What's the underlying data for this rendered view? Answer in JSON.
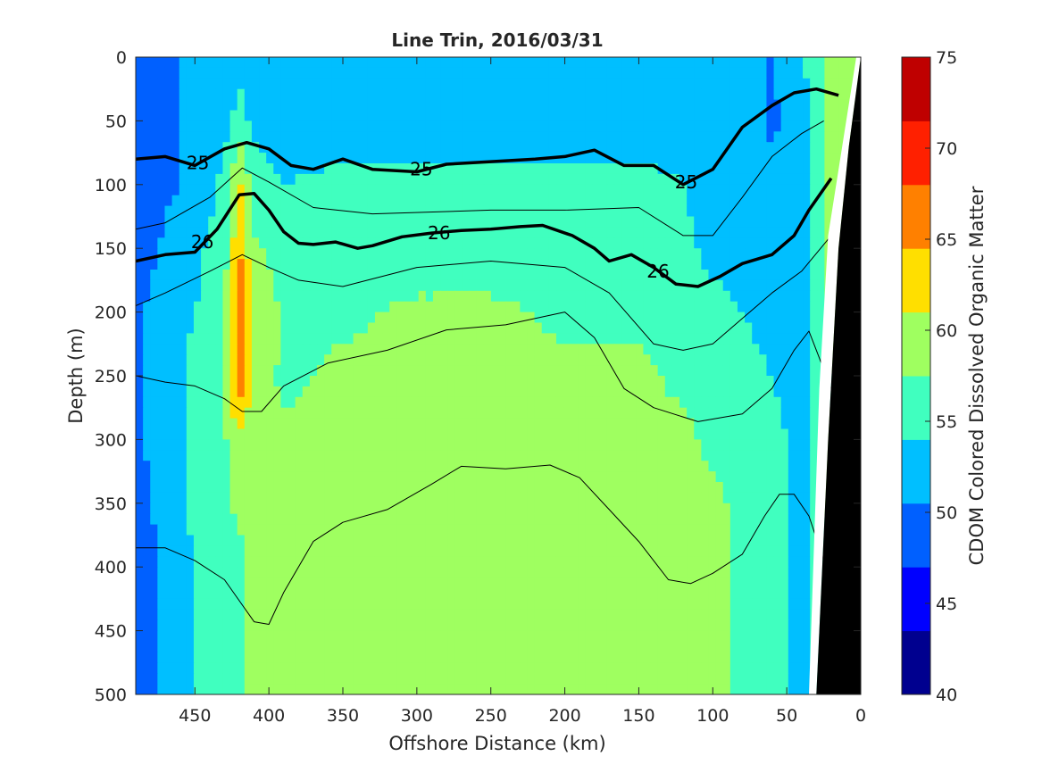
{
  "chart_data": {
    "type": "heatmap",
    "title": "Line Trin, 2016/03/31",
    "xlabel": "Offshore Distance (km)",
    "ylabel": "Depth (m)",
    "colorbar_label": "CDOM Colored Dissolved Organic Matter",
    "x_reversed": true,
    "y_reversed": true,
    "xlim": [
      490,
      0
    ],
    "ylim": [
      500,
      0
    ],
    "xticks": [
      450,
      400,
      350,
      300,
      250,
      200,
      150,
      100,
      50,
      0
    ],
    "yticks": [
      0,
      50,
      100,
      150,
      200,
      250,
      300,
      350,
      400,
      450,
      500
    ],
    "clim": [
      40,
      75
    ],
    "colorbar_ticks": [
      40,
      45,
      50,
      55,
      60,
      65,
      70,
      75
    ],
    "colormap": [
      "#00008f",
      "#0000ff",
      "#0060ff",
      "#00bfff",
      "#40ffbf",
      "#9fff60",
      "#ffdf00",
      "#ff8000",
      "#ff2000",
      "#bf0000"
    ],
    "bathymetry_color": "#000000",
    "color_field": {
      "x_km": [
        490,
        470,
        450,
        430,
        420,
        410,
        390,
        350,
        300,
        250,
        200,
        150,
        120,
        100,
        80,
        60,
        40,
        25,
        15
      ],
      "depth_m": [
        0,
        50,
        100,
        150,
        200,
        250,
        300,
        350,
        400,
        450,
        500
      ],
      "values": [
        [
          50,
          50,
          51,
          52,
          53,
          52,
          52,
          52,
          52,
          52,
          52,
          52,
          53,
          54,
          52,
          50,
          54,
          57,
          60
        ],
        [
          48,
          50,
          51,
          53,
          55,
          53,
          52,
          52,
          52,
          52,
          52,
          52,
          53,
          53,
          52,
          50,
          52,
          57,
          60
        ],
        [
          48,
          50,
          51,
          55,
          62,
          56,
          54,
          55,
          55,
          55,
          55,
          55,
          54,
          52,
          52,
          51,
          51,
          57,
          60
        ],
        [
          49,
          51,
          53,
          56,
          65,
          58,
          56,
          56,
          56,
          56,
          56,
          56,
          55,
          53,
          53,
          52,
          51,
          57,
          60
        ],
        [
          50,
          52,
          54,
          57,
          66,
          60,
          57,
          57,
          58,
          58,
          57,
          57,
          56,
          55,
          54,
          53,
          52,
          57,
          60
        ],
        [
          50,
          52,
          55,
          58,
          68,
          59,
          57,
          58,
          58,
          58,
          58,
          58,
          57,
          56,
          55,
          54,
          52,
          56,
          60
        ],
        [
          50,
          52,
          55,
          57,
          60,
          58,
          58,
          58,
          59,
          59,
          58,
          58,
          58,
          57,
          56,
          55,
          53,
          57,
          60
        ],
        [
          49,
          52,
          55,
          57,
          58,
          58,
          58,
          59,
          59,
          59,
          59,
          58,
          58,
          58,
          57,
          56,
          53,
          57,
          60
        ],
        [
          48,
          51,
          54,
          56,
          57,
          58,
          59,
          59,
          59,
          60,
          59,
          58,
          58,
          58,
          57,
          56,
          53,
          57,
          60
        ],
        [
          48,
          51,
          54,
          56,
          57,
          58,
          59,
          60,
          60,
          60,
          59,
          59,
          58,
          58,
          57,
          56,
          53,
          57,
          60
        ],
        [
          48,
          51,
          54,
          56,
          57,
          58,
          59,
          59,
          60,
          59,
          59,
          58,
          58,
          58,
          57,
          55,
          53,
          57,
          60
        ]
      ]
    },
    "contour_lines": [
      {
        "level": "25",
        "bold": true,
        "points": [
          [
            490,
            80
          ],
          [
            470,
            78
          ],
          [
            450,
            85
          ],
          [
            430,
            72
          ],
          [
            415,
            67
          ],
          [
            400,
            72
          ],
          [
            385,
            85
          ],
          [
            370,
            88
          ],
          [
            350,
            80
          ],
          [
            330,
            88
          ],
          [
            300,
            90
          ],
          [
            280,
            84
          ],
          [
            250,
            82
          ],
          [
            220,
            80
          ],
          [
            200,
            78
          ],
          [
            180,
            73
          ],
          [
            160,
            85
          ],
          [
            140,
            85
          ],
          [
            120,
            100
          ],
          [
            100,
            88
          ],
          [
            80,
            55
          ],
          [
            60,
            38
          ],
          [
            45,
            28
          ],
          [
            30,
            25
          ],
          [
            15,
            30
          ]
        ],
        "labels": [
          [
            448,
            83
          ],
          [
            297,
            88
          ],
          [
            118,
            98
          ]
        ]
      },
      {
        "level": "26",
        "bold": true,
        "points": [
          [
            490,
            160
          ],
          [
            470,
            155
          ],
          [
            450,
            153
          ],
          [
            435,
            135
          ],
          [
            420,
            108
          ],
          [
            410,
            107
          ],
          [
            400,
            120
          ],
          [
            390,
            137
          ],
          [
            380,
            146
          ],
          [
            370,
            147
          ],
          [
            355,
            145
          ],
          [
            340,
            150
          ],
          [
            330,
            148
          ],
          [
            310,
            141
          ],
          [
            290,
            138
          ],
          [
            270,
            136
          ],
          [
            250,
            135
          ],
          [
            230,
            133
          ],
          [
            215,
            132
          ],
          [
            195,
            140
          ],
          [
            180,
            150
          ],
          [
            170,
            160
          ],
          [
            155,
            155
          ],
          [
            140,
            165
          ],
          [
            125,
            178
          ],
          [
            110,
            180
          ],
          [
            95,
            172
          ],
          [
            80,
            162
          ],
          [
            60,
            155
          ],
          [
            45,
            140
          ],
          [
            35,
            120
          ],
          [
            20,
            95
          ]
        ],
        "labels": [
          [
            445,
            145
          ],
          [
            285,
            138
          ],
          [
            137,
            168
          ]
        ]
      },
      {
        "level": "",
        "bold": false,
        "points": [
          [
            490,
            135
          ],
          [
            470,
            130
          ],
          [
            440,
            110
          ],
          [
            418,
            87
          ],
          [
            400,
            98
          ],
          [
            370,
            118
          ],
          [
            330,
            123
          ],
          [
            250,
            120
          ],
          [
            200,
            120
          ],
          [
            150,
            118
          ],
          [
            120,
            140
          ],
          [
            100,
            140
          ],
          [
            80,
            110
          ],
          [
            60,
            78
          ],
          [
            40,
            60
          ],
          [
            25,
            50
          ]
        ]
      },
      {
        "level": "",
        "bold": false,
        "points": [
          [
            490,
            195
          ],
          [
            470,
            185
          ],
          [
            440,
            168
          ],
          [
            418,
            155
          ],
          [
            400,
            165
          ],
          [
            380,
            175
          ],
          [
            350,
            180
          ],
          [
            300,
            165
          ],
          [
            250,
            160
          ],
          [
            200,
            165
          ],
          [
            170,
            185
          ],
          [
            140,
            225
          ],
          [
            120,
            230
          ],
          [
            100,
            225
          ],
          [
            80,
            205
          ],
          [
            60,
            185
          ],
          [
            40,
            168
          ],
          [
            20,
            140
          ]
        ]
      },
      {
        "level": "",
        "bold": false,
        "points": [
          [
            490,
            250
          ],
          [
            470,
            255
          ],
          [
            450,
            258
          ],
          [
            430,
            268
          ],
          [
            418,
            278
          ],
          [
            405,
            278
          ],
          [
            390,
            258
          ],
          [
            360,
            240
          ],
          [
            320,
            230
          ],
          [
            280,
            214
          ],
          [
            240,
            210
          ],
          [
            200,
            200
          ],
          [
            180,
            220
          ],
          [
            160,
            260
          ],
          [
            140,
            275
          ],
          [
            110,
            286
          ],
          [
            80,
            280
          ],
          [
            60,
            260
          ],
          [
            45,
            230
          ],
          [
            35,
            215
          ],
          [
            25,
            245
          ],
          [
            20,
            260
          ]
        ]
      },
      {
        "level": "",
        "bold": false,
        "points": [
          [
            490,
            385
          ],
          [
            470,
            385
          ],
          [
            450,
            395
          ],
          [
            430,
            410
          ],
          [
            410,
            443
          ],
          [
            400,
            445
          ],
          [
            390,
            420
          ],
          [
            380,
            400
          ],
          [
            370,
            380
          ],
          [
            350,
            365
          ],
          [
            320,
            355
          ],
          [
            290,
            335
          ],
          [
            270,
            321
          ],
          [
            240,
            323
          ],
          [
            210,
            320
          ],
          [
            190,
            330
          ],
          [
            170,
            355
          ],
          [
            150,
            380
          ],
          [
            130,
            410
          ],
          [
            115,
            413
          ],
          [
            100,
            405
          ],
          [
            80,
            390
          ],
          [
            65,
            360
          ],
          [
            55,
            343
          ],
          [
            45,
            343
          ],
          [
            35,
            360
          ],
          [
            25,
            395
          ]
        ]
      }
    ]
  }
}
